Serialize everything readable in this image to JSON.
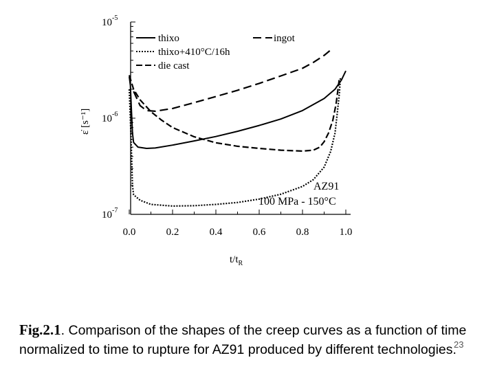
{
  "chart_data": {
    "type": "line",
    "xlabel_main": "t/t",
    "xlabel_sub": "R",
    "ylabel": "ε̇ [s⁻¹]",
    "yscale": "log",
    "xlim": [
      0.0,
      1.0
    ],
    "ylim": [
      1e-07,
      1e-05
    ],
    "x_ticks": [
      "0.0",
      "0.2",
      "0.4",
      "0.6",
      "0.8",
      "1.0"
    ],
    "y_ticks": [
      {
        "base": "10",
        "exp": "-5"
      },
      {
        "base": "10",
        "exp": "-6"
      },
      {
        "base": "10",
        "exp": "-7"
      }
    ],
    "legend": {
      "placement": "top",
      "entries": [
        "thixo",
        "thixo+410°C/16h",
        "die cast",
        "ingot"
      ]
    },
    "annotations": [
      "AZ91",
      "100 MPa - 150°C"
    ],
    "series": [
      {
        "name": "thixo",
        "style": "solid",
        "points": [
          [
            0.0,
            2.7e-06
          ],
          [
            0.005,
            2.2e-06
          ],
          [
            0.01,
            1.2e-06
          ],
          [
            0.015,
            7e-07
          ],
          [
            0.02,
            5.6e-07
          ],
          [
            0.04,
            5e-07
          ],
          [
            0.08,
            4.85e-07
          ],
          [
            0.12,
            4.9e-07
          ],
          [
            0.2,
            5.25e-07
          ],
          [
            0.3,
            5.8e-07
          ],
          [
            0.4,
            6.45e-07
          ],
          [
            0.5,
            7.3e-07
          ],
          [
            0.6,
            8.4e-07
          ],
          [
            0.7,
            9.8e-07
          ],
          [
            0.8,
            1.2e-06
          ],
          [
            0.9,
            1.6e-06
          ],
          [
            0.95,
            2e-06
          ],
          [
            0.98,
            2.5e-06
          ],
          [
            1.0,
            3.1e-06
          ]
        ]
      },
      {
        "name": "thixo+410°C/16h",
        "style": "dotted",
        "points": [
          [
            0.0,
            2e-06
          ],
          [
            0.005,
            1e-06
          ],
          [
            0.01,
            4.5e-07
          ],
          [
            0.015,
            2e-07
          ],
          [
            0.02,
            1.6e-07
          ],
          [
            0.05,
            1.4e-07
          ],
          [
            0.1,
            1.27e-07
          ],
          [
            0.2,
            1.22e-07
          ],
          [
            0.3,
            1.23e-07
          ],
          [
            0.4,
            1.27e-07
          ],
          [
            0.5,
            1.33e-07
          ],
          [
            0.6,
            1.44e-07
          ],
          [
            0.7,
            1.62e-07
          ],
          [
            0.8,
            1.95e-07
          ],
          [
            0.85,
            2.3e-07
          ],
          [
            0.9,
            3.1e-07
          ],
          [
            0.93,
            4.5e-07
          ],
          [
            0.95,
            7e-07
          ],
          [
            0.96,
            1.1e-06
          ],
          [
            0.97,
            1.8e-06
          ],
          [
            0.975,
            2.6e-06
          ]
        ]
      },
      {
        "name": "die cast",
        "style": "dashed",
        "points": [
          [
            0.0,
            2.8e-06
          ],
          [
            0.02,
            2e-06
          ],
          [
            0.05,
            1.55e-06
          ],
          [
            0.1,
            1.17e-06
          ],
          [
            0.15,
            9.5e-07
          ],
          [
            0.2,
            8e-07
          ],
          [
            0.3,
            6.4e-07
          ],
          [
            0.4,
            5.55e-07
          ],
          [
            0.5,
            5.1e-07
          ],
          [
            0.6,
            4.85e-07
          ],
          [
            0.7,
            4.65e-07
          ],
          [
            0.8,
            4.55e-07
          ],
          [
            0.85,
            4.65e-07
          ],
          [
            0.88,
            5e-07
          ],
          [
            0.9,
            5.7e-07
          ],
          [
            0.92,
            7e-07
          ],
          [
            0.94,
            9.5e-07
          ],
          [
            0.955,
            1.4e-06
          ],
          [
            0.965,
            2.1e-06
          ],
          [
            0.97,
            2.6e-06
          ]
        ]
      },
      {
        "name": "ingot",
        "style": "long-dashed",
        "points": [
          [
            0.02,
            1.9e-06
          ],
          [
            0.05,
            1.35e-06
          ],
          [
            0.08,
            1.2e-06
          ],
          [
            0.12,
            1.18e-06
          ],
          [
            0.2,
            1.26e-06
          ],
          [
            0.3,
            1.45e-06
          ],
          [
            0.4,
            1.68e-06
          ],
          [
            0.5,
            1.95e-06
          ],
          [
            0.6,
            2.3e-06
          ],
          [
            0.7,
            2.75e-06
          ],
          [
            0.8,
            3.3e-06
          ],
          [
            0.85,
            3.8e-06
          ],
          [
            0.9,
            4.5e-06
          ],
          [
            0.93,
            5.1e-06
          ]
        ]
      }
    ]
  },
  "caption": {
    "fig_label": "Fig.2.1",
    "text": ". Comparison of the shapes of the creep curves as a function of time normalized to time to rupture for AZ91 produced by different technologies."
  },
  "slide_number": "23"
}
